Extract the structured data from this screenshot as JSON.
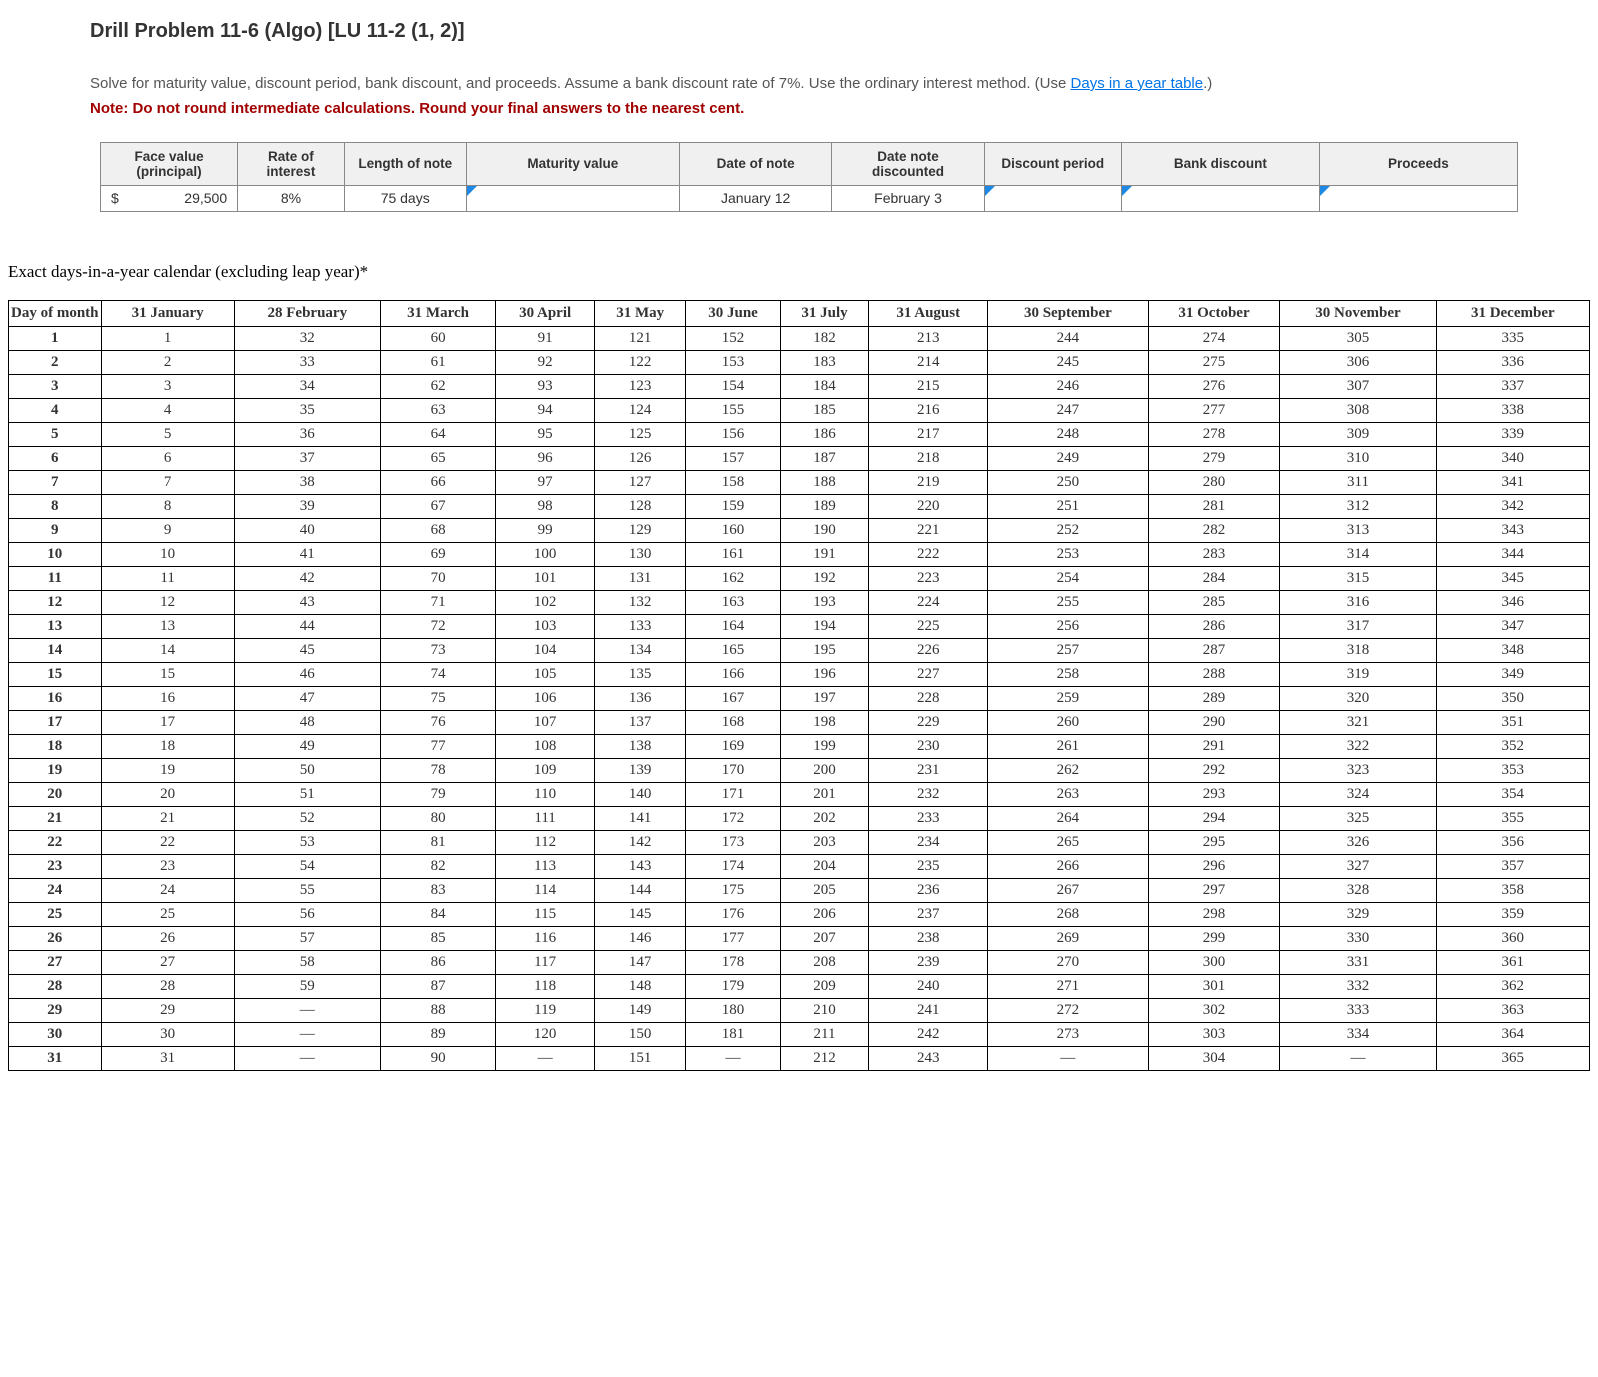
{
  "problem": {
    "title": "Drill Problem 11-6 (Algo) [LU 11-2 (1, 2)]",
    "desc_part1": "Solve for maturity value, discount period, bank discount, and proceeds. Assume a bank discount rate of 7%. Use the ordinary interest method. (Use ",
    "link_text": "Days in a year table",
    "desc_part2": ".)",
    "note": "Note: Do not round intermediate calculations. Round your final answers to the nearest cent."
  },
  "input_table": {
    "headers": [
      "Face value (principal)",
      "Rate of interest",
      "Length of note",
      "Maturity value",
      "Date of note",
      "Date note discounted",
      "Discount period",
      "Bank discount",
      "Proceeds"
    ],
    "row": {
      "currency": "$",
      "face_value": "29,500",
      "rate": "8%",
      "length": "75 days",
      "maturity": "",
      "date_note": "January 12",
      "date_discounted": "February 3",
      "discount_period": "",
      "bank_discount": "",
      "proceeds": ""
    }
  },
  "calendar": {
    "caption": "Exact days-in-a-year calendar (excluding leap year)*",
    "day_of_month_header": "Day of month",
    "month_headers": [
      "31 January",
      "28 February",
      "31 March",
      "30 April",
      "31 May",
      "30 June",
      "31 July",
      "31 August",
      "30 September",
      "31 October",
      "30 November",
      "31 December"
    ],
    "rows": [
      {
        "d": "1",
        "v": [
          "1",
          "32",
          "60",
          "91",
          "121",
          "152",
          "182",
          "213",
          "244",
          "274",
          "305",
          "335"
        ]
      },
      {
        "d": "2",
        "v": [
          "2",
          "33",
          "61",
          "92",
          "122",
          "153",
          "183",
          "214",
          "245",
          "275",
          "306",
          "336"
        ]
      },
      {
        "d": "3",
        "v": [
          "3",
          "34",
          "62",
          "93",
          "123",
          "154",
          "184",
          "215",
          "246",
          "276",
          "307",
          "337"
        ]
      },
      {
        "d": "4",
        "v": [
          "4",
          "35",
          "63",
          "94",
          "124",
          "155",
          "185",
          "216",
          "247",
          "277",
          "308",
          "338"
        ]
      },
      {
        "d": "5",
        "v": [
          "5",
          "36",
          "64",
          "95",
          "125",
          "156",
          "186",
          "217",
          "248",
          "278",
          "309",
          "339"
        ]
      },
      {
        "d": "6",
        "v": [
          "6",
          "37",
          "65",
          "96",
          "126",
          "157",
          "187",
          "218",
          "249",
          "279",
          "310",
          "340"
        ]
      },
      {
        "d": "7",
        "v": [
          "7",
          "38",
          "66",
          "97",
          "127",
          "158",
          "188",
          "219",
          "250",
          "280",
          "311",
          "341"
        ]
      },
      {
        "d": "8",
        "v": [
          "8",
          "39",
          "67",
          "98",
          "128",
          "159",
          "189",
          "220",
          "251",
          "281",
          "312",
          "342"
        ]
      },
      {
        "d": "9",
        "v": [
          "9",
          "40",
          "68",
          "99",
          "129",
          "160",
          "190",
          "221",
          "252",
          "282",
          "313",
          "343"
        ]
      },
      {
        "d": "10",
        "v": [
          "10",
          "41",
          "69",
          "100",
          "130",
          "161",
          "191",
          "222",
          "253",
          "283",
          "314",
          "344"
        ]
      },
      {
        "d": "11",
        "v": [
          "11",
          "42",
          "70",
          "101",
          "131",
          "162",
          "192",
          "223",
          "254",
          "284",
          "315",
          "345"
        ]
      },
      {
        "d": "12",
        "v": [
          "12",
          "43",
          "71",
          "102",
          "132",
          "163",
          "193",
          "224",
          "255",
          "285",
          "316",
          "346"
        ]
      },
      {
        "d": "13",
        "v": [
          "13",
          "44",
          "72",
          "103",
          "133",
          "164",
          "194",
          "225",
          "256",
          "286",
          "317",
          "347"
        ]
      },
      {
        "d": "14",
        "v": [
          "14",
          "45",
          "73",
          "104",
          "134",
          "165",
          "195",
          "226",
          "257",
          "287",
          "318",
          "348"
        ]
      },
      {
        "d": "15",
        "v": [
          "15",
          "46",
          "74",
          "105",
          "135",
          "166",
          "196",
          "227",
          "258",
          "288",
          "319",
          "349"
        ]
      },
      {
        "d": "16",
        "v": [
          "16",
          "47",
          "75",
          "106",
          "136",
          "167",
          "197",
          "228",
          "259",
          "289",
          "320",
          "350"
        ]
      },
      {
        "d": "17",
        "v": [
          "17",
          "48",
          "76",
          "107",
          "137",
          "168",
          "198",
          "229",
          "260",
          "290",
          "321",
          "351"
        ]
      },
      {
        "d": "18",
        "v": [
          "18",
          "49",
          "77",
          "108",
          "138",
          "169",
          "199",
          "230",
          "261",
          "291",
          "322",
          "352"
        ]
      },
      {
        "d": "19",
        "v": [
          "19",
          "50",
          "78",
          "109",
          "139",
          "170",
          "200",
          "231",
          "262",
          "292",
          "323",
          "353"
        ]
      },
      {
        "d": "20",
        "v": [
          "20",
          "51",
          "79",
          "110",
          "140",
          "171",
          "201",
          "232",
          "263",
          "293",
          "324",
          "354"
        ]
      },
      {
        "d": "21",
        "v": [
          "21",
          "52",
          "80",
          "111",
          "141",
          "172",
          "202",
          "233",
          "264",
          "294",
          "325",
          "355"
        ]
      },
      {
        "d": "22",
        "v": [
          "22",
          "53",
          "81",
          "112",
          "142",
          "173",
          "203",
          "234",
          "265",
          "295",
          "326",
          "356"
        ]
      },
      {
        "d": "23",
        "v": [
          "23",
          "54",
          "82",
          "113",
          "143",
          "174",
          "204",
          "235",
          "266",
          "296",
          "327",
          "357"
        ]
      },
      {
        "d": "24",
        "v": [
          "24",
          "55",
          "83",
          "114",
          "144",
          "175",
          "205",
          "236",
          "267",
          "297",
          "328",
          "358"
        ]
      },
      {
        "d": "25",
        "v": [
          "25",
          "56",
          "84",
          "115",
          "145",
          "176",
          "206",
          "237",
          "268",
          "298",
          "329",
          "359"
        ]
      },
      {
        "d": "26",
        "v": [
          "26",
          "57",
          "85",
          "116",
          "146",
          "177",
          "207",
          "238",
          "269",
          "299",
          "330",
          "360"
        ]
      },
      {
        "d": "27",
        "v": [
          "27",
          "58",
          "86",
          "117",
          "147",
          "178",
          "208",
          "239",
          "270",
          "300",
          "331",
          "361"
        ]
      },
      {
        "d": "28",
        "v": [
          "28",
          "59",
          "87",
          "118",
          "148",
          "179",
          "209",
          "240",
          "271",
          "301",
          "332",
          "362"
        ]
      },
      {
        "d": "29",
        "v": [
          "29",
          "—",
          "88",
          "119",
          "149",
          "180",
          "210",
          "241",
          "272",
          "302",
          "333",
          "363"
        ]
      },
      {
        "d": "30",
        "v": [
          "30",
          "—",
          "89",
          "120",
          "150",
          "181",
          "211",
          "242",
          "273",
          "303",
          "334",
          "364"
        ]
      },
      {
        "d": "31",
        "v": [
          "31",
          "—",
          "90",
          "—",
          "151",
          "—",
          "212",
          "243",
          "—",
          "304",
          "—",
          "365"
        ]
      }
    ]
  },
  "colors": {
    "link": "#0073e6",
    "note": "#a00000",
    "marker": "#1e88e5",
    "header_bg": "#f0f0f0",
    "border_input": "#888888",
    "border_cal": "#000000"
  }
}
